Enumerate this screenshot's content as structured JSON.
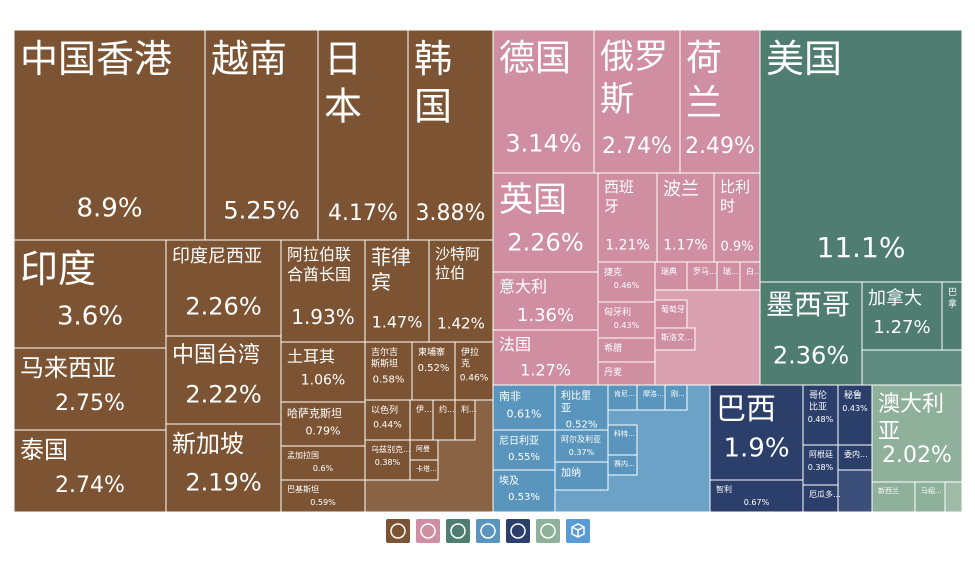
{
  "chart_data": {
    "type": "treemap",
    "series": [
      {
        "color": "#7d5433",
        "categories": [
          "中国香港",
          "越南",
          "日本",
          "韩国",
          "印度",
          "马来西亚",
          "泰国",
          "印度尼西亚",
          "中国台湾",
          "新加坡",
          "阿拉伯联合酋长国",
          "菲律宾",
          "沙特阿拉伯",
          "土耳其",
          "哈萨克斯坦",
          "孟加拉国",
          "巴基斯坦",
          "吉尔吉斯斯坦",
          "柬埔寨",
          "伊拉克",
          "以色列",
          "乌兹别克...",
          "伊...",
          "约...",
          "利...",
          "阿曼",
          "卡塔..."
        ],
        "values": [
          8.9,
          5.25,
          4.17,
          3.88,
          3.6,
          2.75,
          2.74,
          2.26,
          2.22,
          2.19,
          1.93,
          1.47,
          1.42,
          1.06,
          0.79,
          0.6,
          0.59,
          0.58,
          0.52,
          0.46,
          0.44,
          0.38,
          0.2,
          0.2,
          0.18,
          0.2,
          0.18
        ],
        "value_labels": [
          "8.9%",
          "5.25%",
          "4.17%",
          "3.88%",
          "3.6%",
          "2.75%",
          "2.74%",
          "2.26%",
          "2.22%",
          "2.19%",
          "1.93%",
          "1.47%",
          "1.42%",
          "1.06%",
          "0.79%",
          "0.6%",
          "0.59%",
          "0.58%",
          "0.52%",
          "0.46%",
          "0.44%",
          "0.38%",
          null,
          null,
          null,
          null,
          null
        ]
      },
      {
        "color": "#cf8ea2",
        "categories": [
          "德国",
          "俄罗斯",
          "荷兰",
          "英国",
          "意大利",
          "法国",
          "西班牙",
          "波兰",
          "比利时",
          "捷克",
          "匈牙利",
          "希腊",
          "丹麦",
          "瑞典",
          "罗马...",
          "瑞...",
          "白...",
          "葡萄牙",
          "斯洛文..."
        ],
        "values": [
          3.14,
          2.74,
          2.49,
          2.26,
          1.36,
          1.27,
          1.21,
          1.17,
          0.9,
          0.46,
          0.43,
          0.3,
          0.28,
          0.3,
          0.28,
          0.2,
          0.15,
          0.25,
          0.2
        ],
        "value_labels": [
          "3.14%",
          "2.74%",
          "2.49%",
          "2.26%",
          "1.36%",
          "1.27%",
          "1.21%",
          "1.17%",
          "0.9%",
          "0.46%",
          "0.43%",
          null,
          null,
          null,
          null,
          null,
          null,
          null,
          null
        ]
      },
      {
        "color": "#4f7d70",
        "categories": [
          "美国",
          "墨西哥",
          "加拿大",
          "巴拿"
        ],
        "values": [
          11.1,
          2.36,
          1.27,
          0.25
        ],
        "value_labels": [
          "11.1%",
          "2.36%",
          "1.27%",
          null
        ]
      },
      {
        "color": "#2b3f6a",
        "categories": [
          "巴西",
          "智利",
          "哥伦比亚",
          "秘鲁",
          "阿根廷",
          "委内...",
          "厄瓜多..."
        ],
        "values": [
          1.9,
          0.67,
          0.48,
          0.43,
          0.38,
          0.2,
          0.2
        ],
        "value_labels": [
          "1.9%",
          "0.67%",
          "0.48%",
          "0.43%",
          "0.38%",
          null,
          null
        ]
      },
      {
        "color": "#5a95bd",
        "categories": [
          "南非",
          "利比里亚",
          "尼日利亚",
          "埃及",
          "阿尔及利亚",
          "加纳",
          "肯尼...",
          "摩洛...",
          "刚...",
          "科特...",
          "赛内..."
        ],
        "values": [
          0.61,
          0.52,
          0.55,
          0.53,
          0.37,
          0.3,
          0.2,
          0.2,
          0.15,
          0.18,
          0.15
        ],
        "value_labels": [
          "0.61%",
          "0.52%",
          "0.55%",
          "0.53%",
          "0.37%",
          null,
          null,
          null,
          null,
          null,
          null
        ]
      },
      {
        "color": "#8fb09b",
        "categories": [
          "澳大利亚",
          "新西兰",
          "马绍..."
        ],
        "values": [
          2.02,
          0.3,
          0.2
        ],
        "value_labels": [
          "2.02%",
          null,
          null
        ]
      }
    ]
  }
}
